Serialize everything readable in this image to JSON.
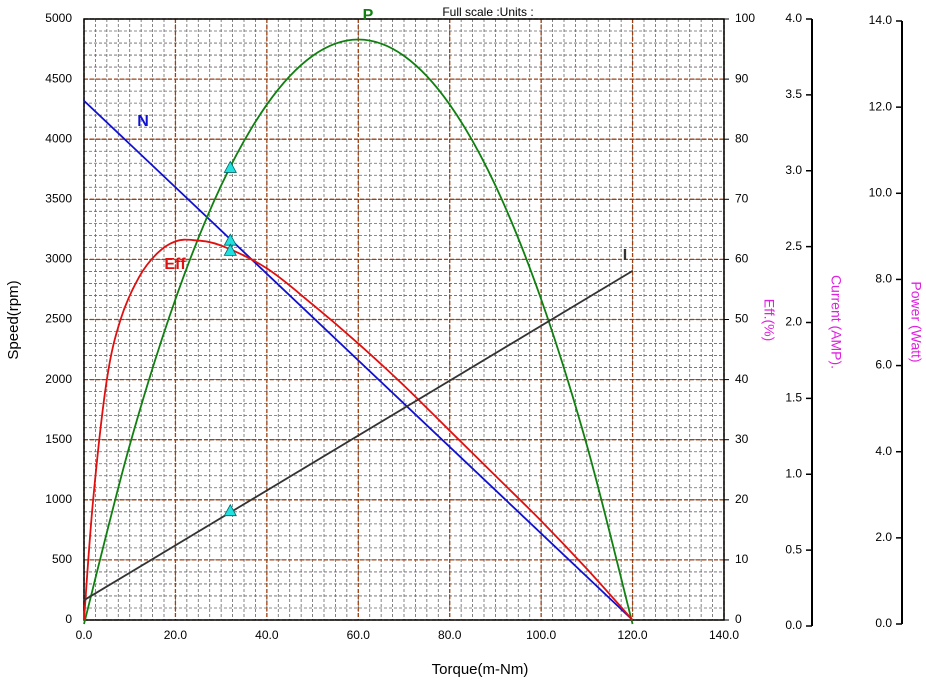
{
  "chart_data": {
    "type": "line",
    "title": "Full scale :Units :",
    "xlabel": "Torque(m-Nm)",
    "ylabel": "Speed(rpm)",
    "y2label": "Eff.(%)",
    "y3label": "Current (AMP).",
    "y4label": "Power (Watt)",
    "xlim": [
      0,
      140
    ],
    "xticks": [
      {
        "value": 0,
        "label": "0.0"
      },
      {
        "value": 20,
        "label": "20.0"
      },
      {
        "value": 40,
        "label": "40.0"
      },
      {
        "value": 60,
        "label": "60.0"
      },
      {
        "value": 80,
        "label": "80.0"
      },
      {
        "value": 100,
        "label": "100.0"
      },
      {
        "value": 120,
        "label": "120.0"
      },
      {
        "value": 140,
        "label": "140.0"
      }
    ],
    "ylim": [
      0,
      5000
    ],
    "yticks": [
      0,
      500,
      1000,
      1500,
      2000,
      2500,
      3000,
      3500,
      4000,
      4500,
      5000
    ],
    "y2lim": [
      0,
      100
    ],
    "y2ticks": [
      0,
      10,
      20,
      30,
      40,
      50,
      60,
      70,
      80,
      90,
      100
    ],
    "y3lim": [
      0,
      4
    ],
    "y3ticks": [
      {
        "value": 0,
        "label": "0.0"
      },
      {
        "value": 0.5,
        "label": "0.5"
      },
      {
        "value": 1,
        "label": "1.0"
      },
      {
        "value": 1.5,
        "label": "1.5"
      },
      {
        "value": 2,
        "label": "2.0"
      },
      {
        "value": 2.5,
        "label": "2.5"
      },
      {
        "value": 3,
        "label": "3.0"
      },
      {
        "value": 3.5,
        "label": "3.5"
      },
      {
        "value": 4,
        "label": "4.0"
      }
    ],
    "y4lim": [
      0,
      14
    ],
    "y4ticks": [
      {
        "value": 0,
        "label": "0.0"
      },
      {
        "value": 2,
        "label": "2.0"
      },
      {
        "value": 4,
        "label": "4.0"
      },
      {
        "value": 6,
        "label": "6.0"
      },
      {
        "value": 8,
        "label": "8.0"
      },
      {
        "value": 10,
        "label": "10.0"
      },
      {
        "value": 12,
        "label": "12.0"
      },
      {
        "value": 14,
        "label": "14.0"
      }
    ],
    "grid": true,
    "minor_grid": {
      "x": 2.5,
      "y": 100
    },
    "series": [
      {
        "name": "N",
        "color": "#1010d0",
        "axis": "y",
        "x": [
          0,
          120
        ],
        "values": [
          4320,
          0
        ]
      },
      {
        "name": "P",
        "color": "#108010",
        "axis": "y4",
        "x": [
          0,
          10,
          20,
          30,
          40,
          50,
          60,
          70,
          80,
          90,
          100,
          110,
          120
        ],
        "values": [
          0,
          4.15,
          7.54,
          10.18,
          12.06,
          13.19,
          13.57,
          13.19,
          12.06,
          10.18,
          7.54,
          4.15,
          0
        ]
      },
      {
        "name": "Eff",
        "color": "#e01010",
        "axis": "y2",
        "x": [
          0,
          2,
          5,
          8,
          12,
          16,
          20,
          24,
          30,
          40,
          50,
          60,
          70,
          80,
          90,
          100,
          110,
          120
        ],
        "values": [
          0,
          20,
          40,
          50,
          57,
          61,
          63,
          63.2,
          62.3,
          58.5,
          52.5,
          46,
          39,
          31.5,
          24,
          16.5,
          8.5,
          0
        ]
      },
      {
        "name": "I",
        "color": "#333333",
        "axis": "y3",
        "x": [
          0,
          120
        ],
        "values": [
          0.17,
          2.34
        ]
      }
    ],
    "markers": {
      "color": "#20e0e0",
      "x": 32,
      "values": [
        3160,
        10.6,
        61.5,
        0.76
      ]
    }
  }
}
